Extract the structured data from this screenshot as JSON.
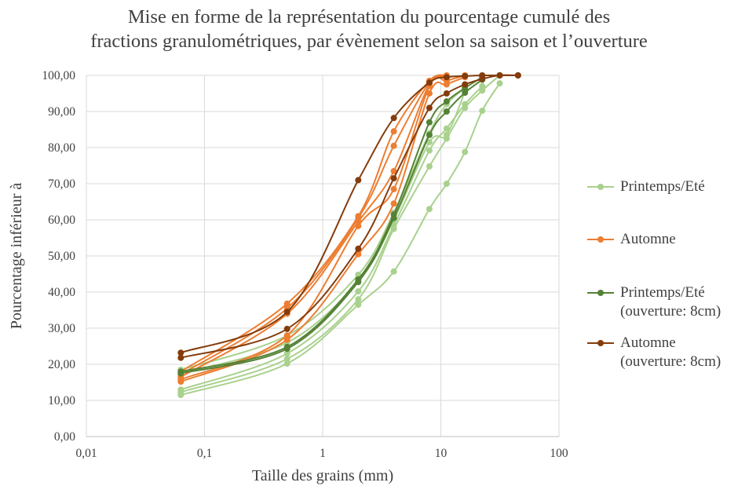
{
  "title_lines": [
    "Mise en forme de la représentation du pourcentage cumulé des",
    "fractions granulométriques, par évènement selon sa saison et l’ouverture"
  ],
  "colors": {
    "printemps_ete": "#a9d18e",
    "automne": "#ed7d31",
    "printemps_ete_8cm": "#548235",
    "automne_8cm": "#843c0c",
    "grid": "#d9d9d9",
    "axis": "#bfbfbf",
    "text": "#404040"
  },
  "legend": [
    {
      "lines": [
        "Printemps/Eté"
      ],
      "group": "printemps_ete"
    },
    {
      "lines": [
        "Automne"
      ],
      "group": "automne"
    },
    {
      "lines": [
        "Printemps/Eté",
        "(ouverture: 8cm)"
      ],
      "group": "printemps_ete_8cm"
    },
    {
      "lines": [
        "Automne",
        "(ouverture: 8cm)"
      ],
      "group": "automne_8cm"
    }
  ],
  "chart_data": {
    "type": "line",
    "title": "Mise en forme de la représentation du pourcentage cumulé des fractions granulométriques, par évènement selon sa saison et l’ouverture",
    "xlabel": "Taille des grains (mm)",
    "ylabel": "Pourcentage inférieur à",
    "x_scale": "log",
    "xlim": [
      0.01,
      100
    ],
    "ylim": [
      0,
      100
    ],
    "x_ticks": [
      "0,01",
      "0,1",
      "1",
      "10",
      "100"
    ],
    "y_ticks": [
      "0,00",
      "10,00",
      "20,00",
      "30,00",
      "40,00",
      "50,00",
      "60,00",
      "70,00",
      "80,00",
      "90,00",
      "100,00"
    ],
    "grid": true,
    "legend_position": "right",
    "series": [
      {
        "name": "Printemps/Eté",
        "group": "printemps_ete",
        "x": [
          0.063,
          0.5,
          2,
          4,
          8,
          11.2,
          16,
          22.4,
          31.5
        ],
        "y": [
          11.5,
          20.2,
          36.5,
          45.7,
          63.0,
          70.0,
          78.8,
          90.2,
          97.8
        ]
      },
      {
        "name": "Printemps/Eté",
        "group": "printemps_ete",
        "x": [
          0.063,
          0.5,
          2,
          4,
          8,
          11.2,
          16,
          22.4,
          31.5
        ],
        "y": [
          12.3,
          21.5,
          38.0,
          57.5,
          74.8,
          82.5,
          91.0,
          95.8,
          100.0
        ]
      },
      {
        "name": "Printemps/Eté",
        "group": "printemps_ete",
        "x": [
          0.063,
          0.5,
          2,
          4,
          8,
          11.2,
          16,
          22.4
        ],
        "y": [
          13.0,
          23.0,
          40.2,
          58.5,
          79.2,
          85.3,
          92.0,
          97.0
        ]
      },
      {
        "name": "Printemps/Eté",
        "group": "printemps_ete",
        "x": [
          0.063,
          0.5,
          2,
          4,
          8,
          11.2,
          16
        ],
        "y": [
          17.5,
          26.0,
          43.0,
          60.0,
          81.5,
          83.5,
          95.5
        ]
      },
      {
        "name": "Printemps/Eté",
        "group": "printemps_ete",
        "x": [
          0.063,
          0.5,
          2,
          4,
          8,
          11.2,
          16
        ],
        "y": [
          18.5,
          28.0,
          44.8,
          62.0,
          84.0,
          92.0,
          96.5
        ]
      },
      {
        "name": "Automne",
        "group": "automne",
        "x": [
          0.063,
          0.5,
          2,
          4,
          8,
          11.2,
          16
        ],
        "y": [
          15.2,
          26.8,
          50.5,
          64.5,
          95.0,
          97.5,
          99.5
        ]
      },
      {
        "name": "Automne",
        "group": "automne",
        "x": [
          0.063,
          0.5,
          2,
          4,
          8,
          11.2,
          16
        ],
        "y": [
          15.8,
          28.0,
          58.3,
          68.5,
          97.0,
          98.5,
          100.0
        ]
      },
      {
        "name": "Automne",
        "group": "automne",
        "x": [
          0.063,
          0.5,
          2,
          4,
          8,
          11.2
        ],
        "y": [
          16.5,
          34.0,
          59.5,
          73.5,
          97.5,
          99.0
        ]
      },
      {
        "name": "Automne",
        "group": "automne",
        "x": [
          0.063,
          0.5,
          2,
          4,
          8,
          11.2
        ],
        "y": [
          17.2,
          35.5,
          60.5,
          80.5,
          98.0,
          99.5
        ]
      },
      {
        "name": "Automne",
        "group": "automne",
        "x": [
          0.063,
          0.5,
          2,
          4,
          8,
          11.2
        ],
        "y": [
          18.0,
          36.8,
          61.0,
          84.5,
          98.5,
          100.0
        ]
      },
      {
        "name": "Printemps/Eté (ouverture: 8cm)",
        "group": "printemps_ete_8cm",
        "x": [
          0.063,
          0.5,
          2,
          4,
          8,
          11.2,
          16,
          22.4
        ],
        "y": [
          17.5,
          24.3,
          42.8,
          60.5,
          83.5,
          90.0,
          95.2,
          98.8
        ]
      },
      {
        "name": "Printemps/Eté (ouverture: 8cm)",
        "group": "printemps_ete_8cm",
        "x": [
          0.063,
          0.5,
          2,
          4,
          8,
          11.2,
          16,
          22.4
        ],
        "y": [
          18.0,
          24.8,
          43.5,
          61.5,
          87.0,
          92.8,
          96.5,
          99.5
        ]
      },
      {
        "name": "Automne (ouverture: 8cm)",
        "group": "automne_8cm",
        "x": [
          0.063,
          0.5,
          2,
          4,
          8,
          11.2,
          16,
          22.4,
          31.5,
          45
        ],
        "y": [
          21.8,
          29.8,
          52.0,
          71.5,
          91.0,
          95.0,
          97.5,
          99.0,
          100.0,
          100.0
        ]
      },
      {
        "name": "Automne (ouverture: 8cm)",
        "group": "automne_8cm",
        "x": [
          0.063,
          0.5,
          2,
          4,
          8,
          11.2,
          16,
          22.4,
          31.5,
          45
        ],
        "y": [
          23.2,
          34.5,
          71.0,
          88.2,
          98.0,
          99.5,
          99.8,
          100.0,
          100.0,
          100.0
        ]
      }
    ]
  }
}
